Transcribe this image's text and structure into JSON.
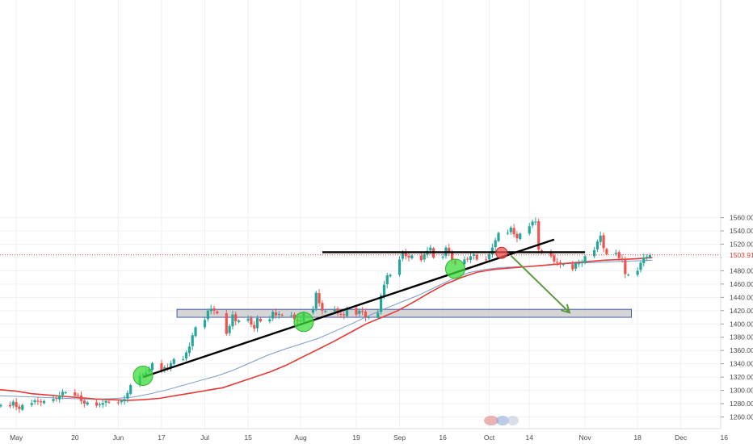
{
  "chart_data": {
    "type": "candlestick",
    "y_axis": {
      "min": 1250,
      "max": 1570,
      "ticks": [
        "1560.00",
        "1540.00",
        "1520.00",
        "1500.00",
        "1480.00",
        "1460.00",
        "1440.00",
        "1420.00",
        "1400.00",
        "1380.00",
        "1360.00",
        "1340.00",
        "1320.00",
        "1300.00",
        "1280.00",
        "1260.00"
      ],
      "tick_values": [
        1560,
        1540,
        1520,
        1500,
        1480,
        1460,
        1440,
        1420,
        1400,
        1380,
        1360,
        1340,
        1320,
        1300,
        1280,
        1260
      ]
    },
    "x_axis": {
      "start_date": "2019-04-26",
      "labels": [
        {
          "text": "May",
          "date": "2019-05-01"
        },
        {
          "text": "20",
          "date": "2019-05-20"
        },
        {
          "text": "Jun",
          "date": "2019-06-03"
        },
        {
          "text": "17",
          "date": "2019-06-17"
        },
        {
          "text": "Jul",
          "date": "2019-07-01"
        },
        {
          "text": "15",
          "date": "2019-07-15"
        },
        {
          "text": "Aug",
          "date": "2019-08-01"
        },
        {
          "text": "19",
          "date": "2019-08-19"
        },
        {
          "text": "Sep",
          "date": "2019-09-02"
        },
        {
          "text": "16",
          "date": "2019-09-16"
        },
        {
          "text": "Oct",
          "date": "2019-10-01"
        },
        {
          "text": "14",
          "date": "2019-10-14"
        },
        {
          "text": "Nov",
          "date": "2019-11-01"
        },
        {
          "text": "18",
          "date": "2019-11-18"
        },
        {
          "text": "Dec",
          "date": "2019-12-02"
        },
        {
          "text": "16",
          "date": "2019-12-16"
        }
      ]
    },
    "current_price": {
      "value": 1503.91,
      "label": "1503.91"
    },
    "colors": {
      "up": "#26a69a",
      "down": "#ef5350",
      "ma_fast": "#e53935",
      "ma_slow": "#7b9bc7",
      "price_line": "#e53935"
    },
    "closes": [
      1278,
      1276,
      1283,
      1275,
      1272,
      1278,
      1281,
      1285,
      1283,
      1282,
      1284,
      1287,
      1287,
      1292,
      1298,
      1297,
      1292,
      1293,
      1284,
      1280,
      1282,
      1277,
      1279,
      1281,
      1284,
      1282,
      1281,
      1284,
      1287,
      1296,
      1308,
      1322,
      1324,
      1327,
      1332,
      1341,
      1329,
      1335,
      1334,
      1341,
      1347,
      1347,
      1357,
      1366,
      1383,
      1395,
      1406,
      1420,
      1423,
      1420,
      1416,
      1385,
      1397,
      1414,
      1404,
      1405,
      1408,
      1399,
      1393,
      1409,
      1404,
      1407,
      1418,
      1413,
      1415,
      1413,
      1413,
      1407,
      1404,
      1405,
      1417,
      1422,
      1447,
      1431,
      1420,
      1419,
      1422,
      1416,
      1414,
      1413,
      1424,
      1414,
      1420,
      1418,
      1410,
      1410,
      1417,
      1443,
      1459,
      1473,
      1474,
      1497,
      1508,
      1502,
      1500,
      1503,
      1496,
      1505,
      1510,
      1515,
      1500,
      1501,
      1515,
      1507,
      1497,
      1490,
      1497,
      1497,
      1502,
      1505,
      1497,
      1496,
      1505,
      1515,
      1526,
      1537,
      1537,
      1545,
      1535,
      1529,
      1536,
      1547,
      1554,
      1554,
      1512,
      1507,
      1502,
      1494,
      1492,
      1490,
      1490,
      1482,
      1491,
      1491,
      1493,
      1502,
      1511,
      1524,
      1533,
      1514,
      1505,
      1507,
      1499,
      1497,
      1475,
      1474,
      1480,
      1492,
      1500,
      1501,
      1504
    ],
    "ma_fast": {
      "start_index": 0,
      "values": [
        1301,
        1299,
        1295,
        1293,
        1291,
        1289,
        1287,
        1286,
        1285,
        1286,
        1288,
        1292,
        1296,
        1300,
        1304,
        1312,
        1320,
        1328,
        1338,
        1350,
        1362,
        1374,
        1387,
        1400,
        1410,
        1420,
        1433,
        1447,
        1460,
        1470,
        1478,
        1482,
        1484,
        1486,
        1488,
        1490,
        1492,
        1494,
        1496,
        1497,
        1498,
        1500
      ]
    },
    "ma_slow": {
      "start_index": 0,
      "values": [
        1292,
        1291,
        1290,
        1289,
        1288,
        1287,
        1287,
        1288,
        1290,
        1295,
        1301,
        1308,
        1315,
        1322,
        1331,
        1342,
        1353,
        1362,
        1370,
        1378,
        1389,
        1400,
        1412,
        1423,
        1433,
        1443,
        1455,
        1467,
        1477,
        1482,
        1485,
        1486,
        1487,
        1489,
        1491,
        1492,
        1493,
        1494,
        1495,
        1496
      ]
    },
    "drawings": {
      "support_zone": {
        "from_date": "2019-06-22",
        "to_date": "2019-11-16",
        "low": 1410,
        "high": 1422
      },
      "trendline": {
        "from": {
          "date": "2019-06-11",
          "price": 1320
        },
        "to": {
          "date": "2019-10-22",
          "price": 1527
        }
      },
      "resistance_line": {
        "from": {
          "date": "2019-08-08",
          "price": 1508
        },
        "to": {
          "date": "2019-11-01",
          "price": 1508
        }
      },
      "projection_arrow": {
        "from": {
          "date": "2019-10-08",
          "price": 1503
        },
        "to": {
          "date": "2019-10-27",
          "price": 1417
        }
      },
      "markers": [
        {
          "date": "2019-06-11",
          "price": 1322
        },
        {
          "date": "2019-08-02",
          "price": 1403
        },
        {
          "date": "2019-09-20",
          "price": 1483
        },
        {
          "date": "2019-10-05",
          "price": 1507
        }
      ]
    }
  }
}
